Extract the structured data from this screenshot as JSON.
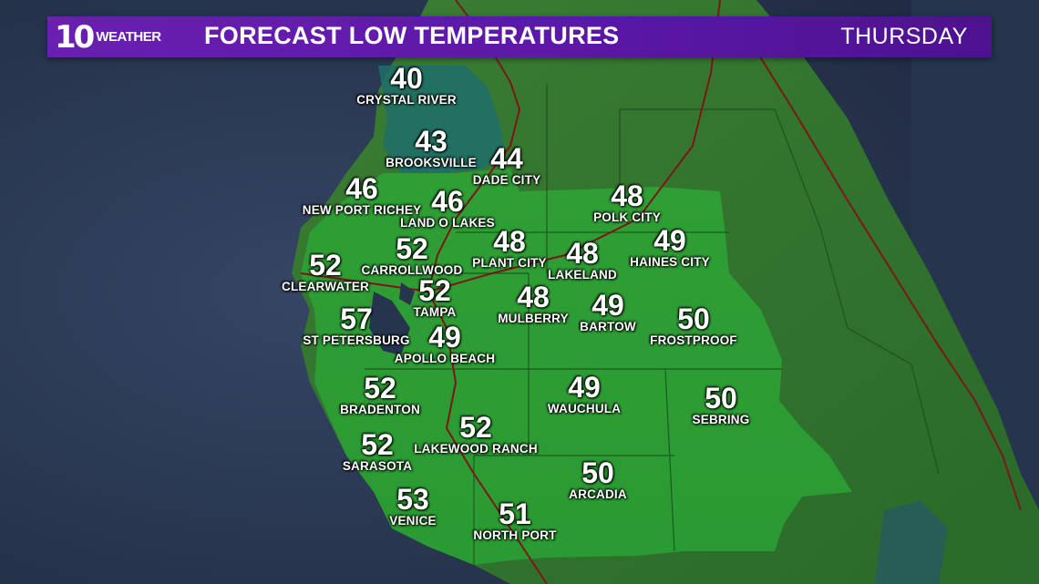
{
  "header": {
    "logo_number": "10",
    "logo_word": "WEATHER",
    "title": "FORECAST LOW TEMPERATURES",
    "day": "THURSDAY"
  },
  "colors": {
    "banner": "#5a17a6",
    "ocean": "#27344d",
    "land": "#2f7a2a",
    "forecast_area": "#2fa537",
    "cool_area": "#1e6b6b",
    "roads": "#7a1a1a"
  },
  "cities": [
    {
      "name": "CRYSTAL RIVER",
      "temp": "40"
    },
    {
      "name": "BROOKSVILLE",
      "temp": "43"
    },
    {
      "name": "DADE CITY",
      "temp": "44"
    },
    {
      "name": "NEW PORT RICHEY",
      "temp": "46"
    },
    {
      "name": "LAND O LAKES",
      "temp": "46"
    },
    {
      "name": "POLK CITY",
      "temp": "48"
    },
    {
      "name": "CARROLLWOOD",
      "temp": "52"
    },
    {
      "name": "PLANT CITY",
      "temp": "48"
    },
    {
      "name": "LAKELAND",
      "temp": "48"
    },
    {
      "name": "HAINES CITY",
      "temp": "49"
    },
    {
      "name": "CLEARWATER",
      "temp": "52"
    },
    {
      "name": "TAMPA",
      "temp": "52"
    },
    {
      "name": "MULBERRY",
      "temp": "48"
    },
    {
      "name": "BARTOW",
      "temp": "49"
    },
    {
      "name": "FROSTPROOF",
      "temp": "50"
    },
    {
      "name": "ST PETERSBURG",
      "temp": "57"
    },
    {
      "name": "APOLLO BEACH",
      "temp": "49"
    },
    {
      "name": "BRADENTON",
      "temp": "52"
    },
    {
      "name": "WAUCHULA",
      "temp": "49"
    },
    {
      "name": "SEBRING",
      "temp": "50"
    },
    {
      "name": "LAKEWOOD RANCH",
      "temp": "52"
    },
    {
      "name": "SARASOTA",
      "temp": "52"
    },
    {
      "name": "ARCADIA",
      "temp": "50"
    },
    {
      "name": "VENICE",
      "temp": "53"
    },
    {
      "name": "NORTH PORT",
      "temp": "51"
    }
  ]
}
